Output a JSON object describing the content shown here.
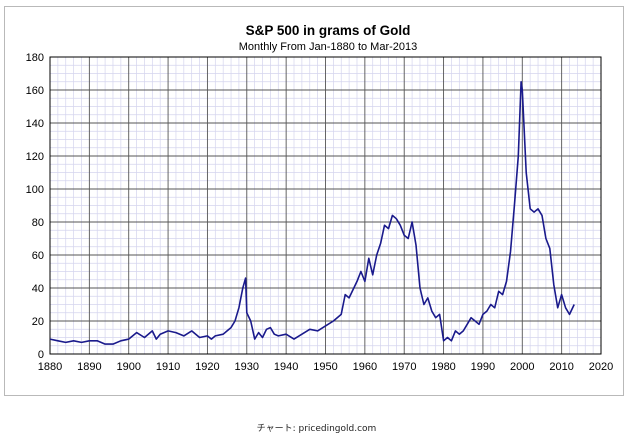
{
  "caption": "チャート: pricedingold.com",
  "chart_data": {
    "type": "line",
    "title": "S&P 500 in grams of Gold",
    "subtitle": "Monthly From Jan-1880 to Mar-2013",
    "xlabel": "",
    "ylabel": "",
    "xlim": [
      1880,
      2020
    ],
    "ylim": [
      0,
      180
    ],
    "x_ticks": [
      1880,
      1890,
      1900,
      1910,
      1920,
      1930,
      1940,
      1950,
      1960,
      1970,
      1980,
      1990,
      2000,
      2010,
      2020
    ],
    "y_ticks": [
      0,
      20,
      40,
      60,
      80,
      100,
      120,
      140,
      160,
      180
    ],
    "grid": true,
    "legend": "none",
    "line_color": "#1a1a8c",
    "series": [
      {
        "x": [
          1880,
          1882,
          1884,
          1886,
          1888,
          1890,
          1892,
          1894,
          1896,
          1898,
          1900,
          1902,
          1904,
          1906,
          1907,
          1908,
          1910,
          1912,
          1914,
          1916,
          1918,
          1920,
          1921,
          1922,
          1924,
          1925,
          1926,
          1927,
          1928,
          1929,
          1929.7,
          1930,
          1931,
          1932,
          1933,
          1934,
          1935,
          1936,
          1937,
          1938,
          1940,
          1942,
          1944,
          1946,
          1948,
          1950,
          1952,
          1954,
          1955,
          1956,
          1958,
          1959,
          1960,
          1961,
          1962,
          1963,
          1964,
          1965,
          1966,
          1967,
          1968,
          1969,
          1970,
          1971,
          1972,
          1973,
          1974,
          1975,
          1976,
          1977,
          1978,
          1979,
          1980,
          1981,
          1982,
          1983,
          1984,
          1985,
          1986,
          1987,
          1988,
          1989,
          1990,
          1991,
          1992,
          1993,
          1994,
          1995,
          1996,
          1997,
          1998,
          1999,
          1999.7,
          2000,
          2001,
          2002,
          2003,
          2004,
          2005,
          2006,
          2007,
          2008,
          2009,
          2010,
          2011,
          2012,
          2013.2
        ],
        "y": [
          9,
          8,
          7,
          8,
          7,
          8,
          8,
          6,
          6,
          8,
          9,
          13,
          10,
          14,
          9,
          12,
          14,
          13,
          11,
          14,
          10,
          11,
          9,
          11,
          12,
          14,
          16,
          20,
          28,
          40,
          46,
          25,
          20,
          9,
          13,
          10,
          15,
          16,
          12,
          11,
          12,
          9,
          12,
          15,
          14,
          17,
          20,
          24,
          36,
          34,
          44,
          50,
          44,
          58,
          48,
          60,
          67,
          78,
          76,
          84,
          82,
          78,
          72,
          70,
          80,
          66,
          40,
          30,
          34,
          26,
          22,
          24,
          8,
          10,
          8,
          14,
          12,
          14,
          18,
          22,
          20,
          18,
          24,
          26,
          30,
          28,
          38,
          36,
          44,
          62,
          90,
          120,
          165,
          160,
          110,
          88,
          86,
          88,
          84,
          70,
          64,
          42,
          28,
          36,
          28,
          24,
          30
        ]
      }
    ]
  }
}
